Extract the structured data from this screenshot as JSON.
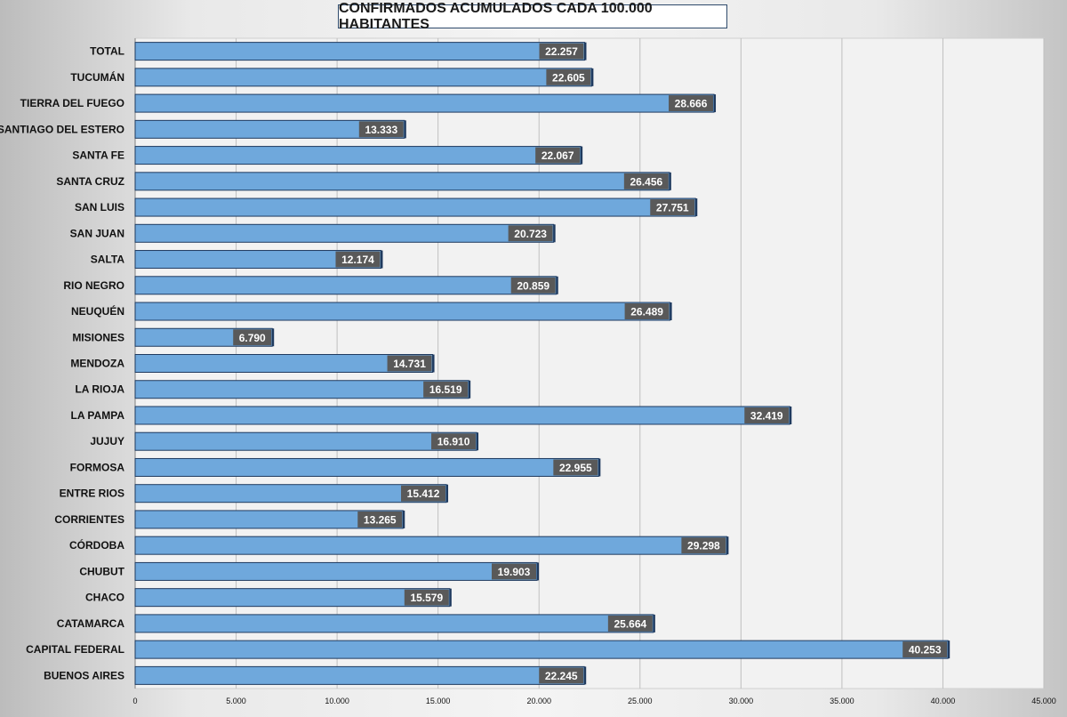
{
  "chart_data": {
    "type": "bar",
    "orientation": "horizontal",
    "title": "CONFIRMADOS ACUMULADOS CADA 100.000 HABITANTES",
    "categories": [
      "TOTAL",
      "TUCUMÁN",
      "TIERRA DEL FUEGO",
      "SANTIAGO DEL ESTERO",
      "SANTA FE",
      "SANTA CRUZ",
      "SAN LUIS",
      "SAN JUAN",
      "SALTA",
      "RIO NEGRO",
      "NEUQUÉN",
      "MISIONES",
      "MENDOZA",
      "LA RIOJA",
      "LA PAMPA",
      "JUJUY",
      "FORMOSA",
      "ENTRE RIOS",
      "CORRIENTES",
      "CÓRDOBA",
      "CHUBUT",
      "CHACO",
      "CATAMARCA",
      "CAPITAL FEDERAL",
      "BUENOS AIRES"
    ],
    "values": [
      22257,
      22605,
      28666,
      13333,
      22067,
      26456,
      27751,
      20723,
      12174,
      20859,
      26489,
      6790,
      14731,
      16519,
      32419,
      16910,
      22955,
      15412,
      13265,
      29298,
      19903,
      15579,
      25664,
      40253,
      22245
    ],
    "value_labels": [
      "22.257",
      "22.605",
      "28.666",
      "13.333",
      "22.067",
      "26.456",
      "27.751",
      "20.723",
      "12.174",
      "20.859",
      "26.489",
      "6.790",
      "14.731",
      "16.519",
      "32.419",
      "16.910",
      "22.955",
      "15.412",
      "13.265",
      "29.298",
      "19.903",
      "15.579",
      "25.664",
      "40.253",
      "22.245"
    ],
    "xlim": [
      0,
      45000
    ],
    "xticks": [
      0,
      5000,
      10000,
      15000,
      20000,
      25000,
      30000,
      35000,
      40000,
      45000
    ],
    "xtick_labels": [
      "0",
      "5.000",
      "10.000",
      "15.000",
      "20.000",
      "25.000",
      "30.000",
      "35.000",
      "40.000",
      "45.000"
    ],
    "grid": "vertical",
    "legend": "none",
    "colors": {
      "bar": "#6fa8dc",
      "bar_border": "#1f3a5f",
      "label_bg": "#595959",
      "plot_bg": "#f2f2f2",
      "grid": "#bfbfbf"
    }
  }
}
